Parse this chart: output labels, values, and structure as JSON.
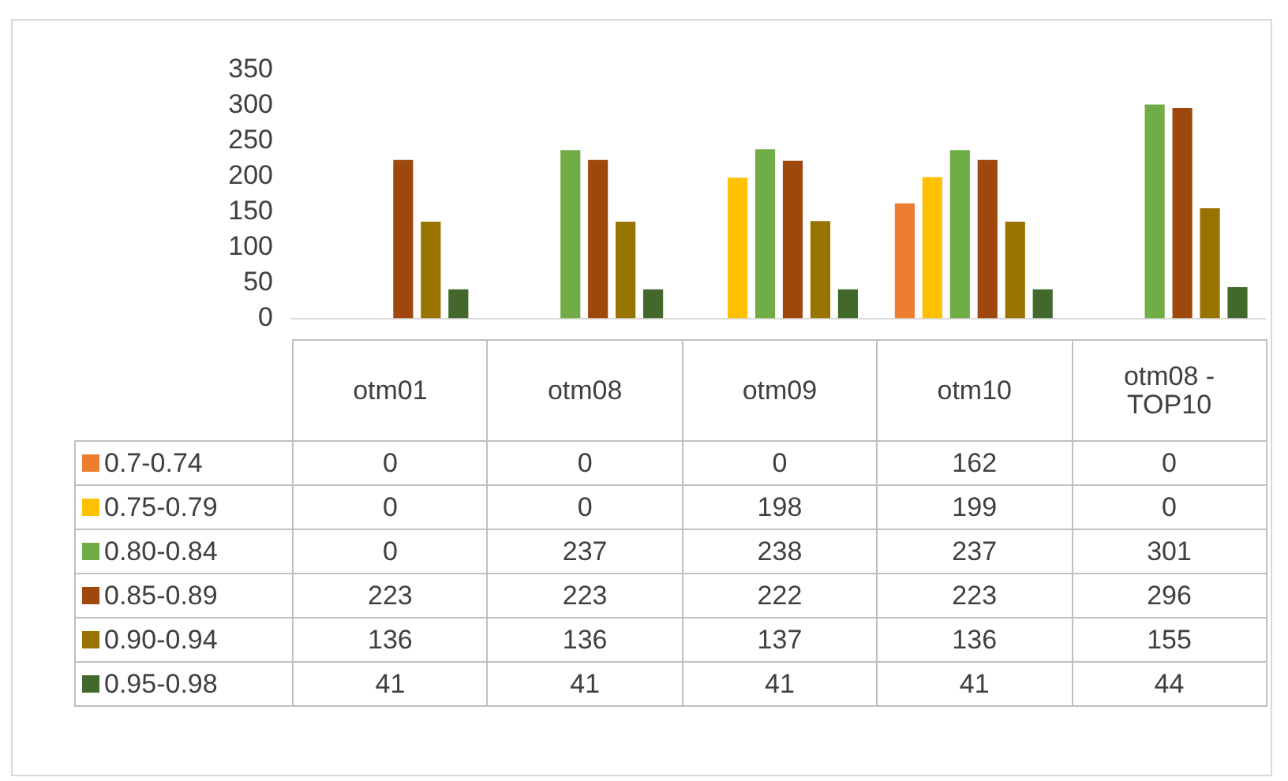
{
  "chart_data": {
    "type": "bar",
    "categories": [
      "otm01",
      "otm08",
      "otm09",
      "otm10",
      "otm08 - TOP10"
    ],
    "series": [
      {
        "name": "0.7-0.74",
        "color": "#ed7d31",
        "values": [
          0,
          0,
          0,
          162,
          0
        ]
      },
      {
        "name": "0.75-0.79",
        "color": "#ffc000",
        "values": [
          0,
          0,
          198,
          199,
          0
        ]
      },
      {
        "name": "0.80-0.84",
        "color": "#70ad47",
        "values": [
          0,
          237,
          238,
          237,
          301
        ]
      },
      {
        "name": "0.85-0.89",
        "color": "#9e480e",
        "values": [
          223,
          223,
          222,
          223,
          296
        ]
      },
      {
        "name": "0.90-0.94",
        "color": "#997300",
        "values": [
          136,
          136,
          137,
          136,
          155
        ]
      },
      {
        "name": "0.95-0.98",
        "color": "#43682b",
        "values": [
          41,
          41,
          41,
          41,
          44
        ]
      }
    ],
    "ylim": [
      0,
      350
    ],
    "yticks": [
      0,
      50,
      100,
      150,
      200,
      250,
      300,
      350
    ],
    "grid": false,
    "legend": "bottom",
    "data_labels": true
  }
}
